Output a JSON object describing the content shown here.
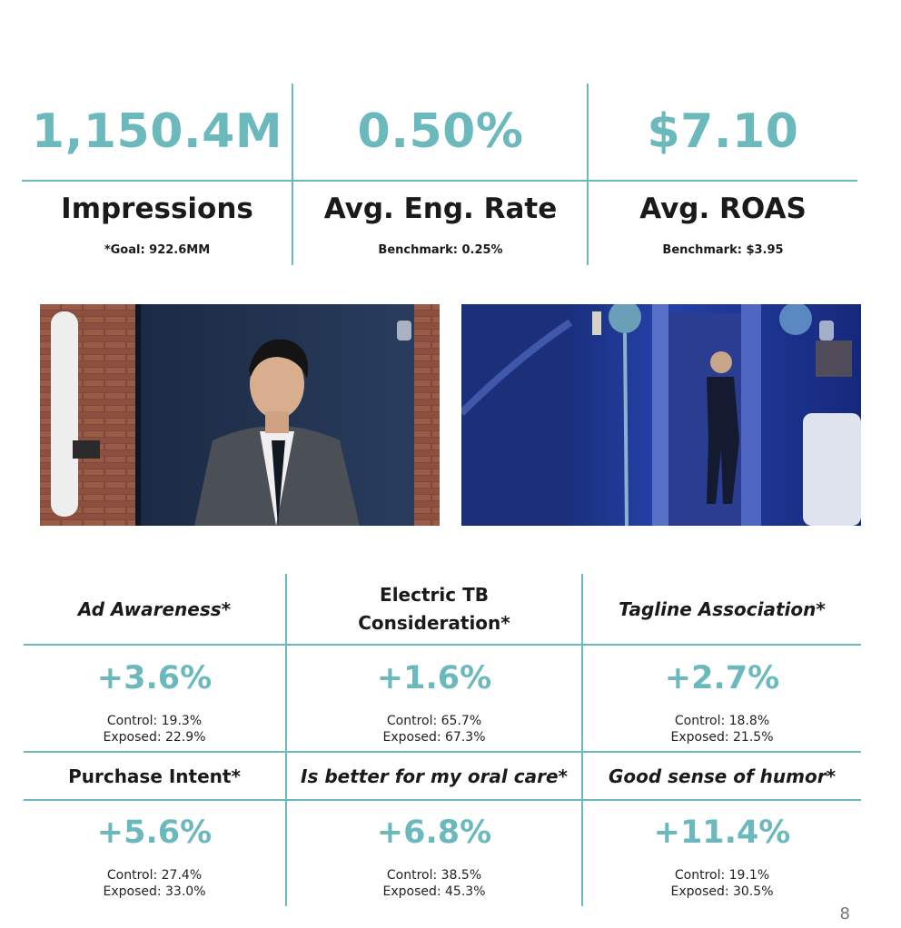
{
  "kpis": [
    {
      "value": "1,150.4M",
      "label": "Impressions",
      "sub": "*Goal: 922.6MM"
    },
    {
      "value": "0.50%",
      "label": "Avg. Eng. Rate",
      "sub": "Benchmark: 0.25%"
    },
    {
      "value": "$7.10",
      "label": "Avg. ROAS",
      "sub": "Benchmark: $3.95"
    }
  ],
  "colors": {
    "accent": "#6bb9bd",
    "text": "#1a1a1a"
  },
  "metrics_row1": [
    {
      "title": "Ad Awareness*",
      "lift": "+3.6%",
      "control": "Control: 19.3%",
      "exposed": "Exposed: 22.9%"
    },
    {
      "title_line1": "Electric TB",
      "title_line2": "Consideration*",
      "lift": "+1.6%",
      "control": "Control: 65.7%",
      "exposed": "Exposed: 67.3%"
    },
    {
      "title": "Tagline Association*",
      "lift": "+2.7%",
      "control": "Control: 18.8%",
      "exposed": "Exposed: 21.5%"
    }
  ],
  "metrics_row2": [
    {
      "title": "Purchase Intent*",
      "lift": "+5.6%",
      "control": "Control: 27.4%",
      "exposed": "Exposed: 33.0%"
    },
    {
      "title": "Is better for my oral care*",
      "lift": "+6.8%",
      "control": "Control: 38.5%",
      "exposed": "Exposed: 45.3%"
    },
    {
      "title": "Good sense of humor*",
      "lift": "+11.4%",
      "control": "Control: 19.1%",
      "exposed": "Exposed: 30.5%"
    }
  ],
  "page_number": "8"
}
